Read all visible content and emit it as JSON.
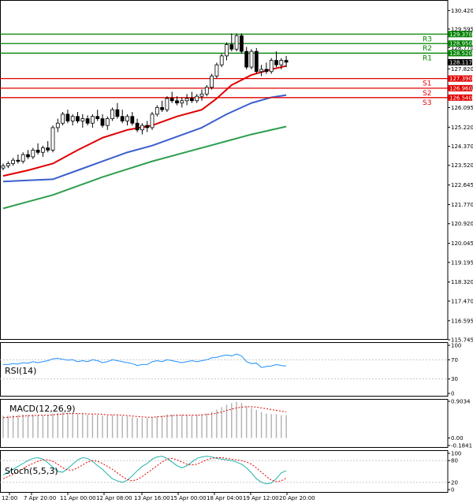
{
  "chart_data": {
    "type": "candlestick",
    "price_axis": {
      "ticks": [
        "130.420",
        "129.595",
        "128.770",
        "127.820",
        "126.995",
        "126.095",
        "125.220",
        "124.370",
        "123.520",
        "122.645",
        "121.770",
        "120.920",
        "120.045",
        "119.195",
        "118.320",
        "117.470",
        "116.595",
        "115.745"
      ],
      "range": [
        115.745,
        130.82
      ]
    },
    "time_axis": {
      "ticks": [
        "12:00",
        "7 Apr 20:00",
        "11 Apr 00:00",
        "12 Apr 08:00",
        "13 Apr 16:00",
        "15 Apr 00:00",
        "18 Apr 04:00",
        "19 Apr 12:00",
        "20 Apr 20:00"
      ]
    },
    "levels": [
      {
        "name": "R3",
        "value": 129.37,
        "label": "129.370",
        "color": "#008000"
      },
      {
        "name": "R2",
        "value": 128.95,
        "label": "128.950",
        "color": "#008000"
      },
      {
        "name": "R1",
        "value": 128.52,
        "label": "128.520",
        "color": "#008000"
      },
      {
        "name": "S1",
        "value": 127.39,
        "label": "127.390",
        "color": "#e00000"
      },
      {
        "name": "S2",
        "value": 126.96,
        "label": "126.960",
        "color": "#e00000"
      },
      {
        "name": "S3",
        "value": 126.54,
        "label": "126.540",
        "color": "#e00000"
      }
    ],
    "current_price": {
      "value": 128.117,
      "label": "128.117"
    },
    "candles": [
      [
        123.4,
        123.6,
        123.3,
        123.5
      ],
      [
        123.5,
        123.7,
        123.4,
        123.6
      ],
      [
        123.6,
        123.85,
        123.5,
        123.75
      ],
      [
        123.75,
        124.0,
        123.6,
        123.7
      ],
      [
        123.7,
        124.1,
        123.6,
        124.0
      ],
      [
        124.0,
        124.2,
        123.8,
        123.9
      ],
      [
        123.9,
        124.3,
        123.8,
        124.2
      ],
      [
        124.2,
        124.5,
        124.0,
        124.1
      ],
      [
        124.1,
        124.4,
        123.9,
        124.3
      ],
      [
        124.3,
        124.6,
        124.1,
        124.2
      ],
      [
        124.2,
        125.3,
        124.1,
        125.2
      ],
      [
        125.2,
        125.6,
        125.0,
        125.4
      ],
      [
        125.4,
        125.9,
        125.3,
        125.8
      ],
      [
        125.8,
        126.0,
        125.4,
        125.5
      ],
      [
        125.5,
        125.8,
        125.3,
        125.7
      ],
      [
        125.7,
        125.9,
        125.4,
        125.5
      ],
      [
        125.5,
        125.8,
        125.2,
        125.6
      ],
      [
        125.6,
        125.75,
        125.3,
        125.4
      ],
      [
        125.4,
        125.8,
        125.2,
        125.7
      ],
      [
        125.7,
        126.0,
        125.5,
        125.6
      ],
      [
        125.6,
        125.8,
        125.2,
        125.3
      ],
      [
        125.3,
        125.7,
        125.1,
        125.6
      ],
      [
        125.6,
        126.1,
        125.5,
        126.0
      ],
      [
        126.0,
        126.3,
        125.6,
        125.7
      ],
      [
        125.7,
        126.0,
        125.4,
        125.5
      ],
      [
        125.5,
        125.8,
        125.3,
        125.7
      ],
      [
        125.7,
        125.9,
        125.3,
        125.4
      ],
      [
        125.4,
        125.6,
        125.0,
        125.1
      ],
      [
        125.1,
        125.4,
        124.9,
        125.3
      ],
      [
        125.3,
        125.5,
        125.0,
        125.2
      ],
      [
        125.2,
        125.9,
        125.1,
        125.8
      ],
      [
        125.8,
        126.2,
        125.7,
        126.1
      ],
      [
        126.1,
        126.4,
        125.9,
        126.0
      ],
      [
        126.0,
        126.6,
        125.9,
        126.5
      ],
      [
        126.5,
        126.8,
        126.3,
        126.4
      ],
      [
        126.4,
        126.6,
        126.2,
        126.3
      ],
      [
        126.3,
        126.55,
        126.1,
        126.4
      ],
      [
        126.4,
        126.7,
        126.2,
        126.5
      ],
      [
        126.5,
        126.8,
        126.3,
        126.4
      ],
      [
        126.4,
        126.7,
        126.3,
        126.6
      ],
      [
        126.6,
        126.9,
        126.4,
        126.7
      ],
      [
        126.7,
        127.1,
        126.6,
        127.0
      ],
      [
        127.0,
        127.6,
        126.9,
        127.5
      ],
      [
        127.5,
        128.1,
        127.4,
        128.0
      ],
      [
        128.0,
        128.5,
        127.9,
        128.4
      ],
      [
        128.4,
        129.0,
        128.2,
        128.9
      ],
      [
        128.9,
        129.4,
        128.6,
        128.7
      ],
      [
        128.7,
        129.4,
        128.6,
        129.3
      ],
      [
        129.3,
        129.4,
        128.5,
        128.6
      ],
      [
        128.6,
        128.8,
        127.8,
        127.9
      ],
      [
        127.9,
        128.7,
        127.8,
        128.6
      ],
      [
        128.6,
        128.75,
        127.6,
        127.7
      ],
      [
        127.7,
        128.0,
        127.5,
        127.8
      ],
      [
        127.8,
        128.1,
        127.6,
        127.7
      ],
      [
        127.7,
        128.3,
        127.6,
        128.2
      ],
      [
        128.2,
        128.6,
        127.9,
        128.0
      ],
      [
        128.0,
        128.3,
        127.8,
        128.2
      ],
      [
        128.2,
        128.4,
        127.9,
        128.117
      ]
    ],
    "moving_averages": [
      {
        "color": "#e00000",
        "values": [
          [
            0,
            123.05
          ],
          [
            5,
            123.3
          ],
          [
            10,
            123.6
          ],
          [
            15,
            124.2
          ],
          [
            20,
            124.75
          ],
          [
            25,
            125.1
          ],
          [
            30,
            125.3
          ],
          [
            35,
            125.7
          ],
          [
            40,
            126.0
          ],
          [
            43,
            126.5
          ],
          [
            46,
            127.1
          ],
          [
            50,
            127.55
          ],
          [
            54,
            127.8
          ],
          [
            57,
            127.95
          ]
        ]
      },
      {
        "color": "#3a5fcd",
        "values": [
          [
            0,
            122.8
          ],
          [
            5,
            122.85
          ],
          [
            10,
            122.9
          ],
          [
            15,
            123.3
          ],
          [
            20,
            123.7
          ],
          [
            25,
            124.1
          ],
          [
            30,
            124.4
          ],
          [
            35,
            124.8
          ],
          [
            40,
            125.2
          ],
          [
            45,
            125.8
          ],
          [
            50,
            126.3
          ],
          [
            54,
            126.55
          ],
          [
            57,
            126.65
          ]
        ]
      },
      {
        "color": "#2e9e4f",
        "values": [
          [
            0,
            121.6
          ],
          [
            5,
            121.9
          ],
          [
            10,
            122.2
          ],
          [
            15,
            122.6
          ],
          [
            20,
            123.0
          ],
          [
            25,
            123.35
          ],
          [
            30,
            123.7
          ],
          [
            35,
            124.0
          ],
          [
            40,
            124.3
          ],
          [
            45,
            124.6
          ],
          [
            50,
            124.9
          ],
          [
            54,
            125.1
          ],
          [
            57,
            125.25
          ]
        ]
      }
    ],
    "rsi": {
      "label": "RSI(14)",
      "ticks": [
        "100",
        "70",
        "30",
        "0"
      ],
      "values": [
        60,
        60,
        62,
        61,
        64,
        63,
        66,
        64,
        66,
        68,
        72,
        73,
        71,
        69,
        70,
        66,
        68,
        66,
        70,
        68,
        64,
        66,
        70,
        68,
        66,
        64,
        62,
        58,
        60,
        60,
        66,
        68,
        66,
        70,
        68,
        66,
        64,
        66,
        68,
        66,
        68,
        70,
        74,
        75,
        78,
        80,
        78,
        82,
        78,
        66,
        62,
        63,
        54,
        56,
        57,
        60,
        58,
        57
      ]
    },
    "macd": {
      "label": "MACD(12,26,9)",
      "ticks": [
        "0.9034",
        "0.00",
        "-0.1841"
      ],
      "range": [
        -0.1841,
        0.9034
      ],
      "histogram": [
        0.55,
        0.55,
        0.56,
        0.56,
        0.58,
        0.57,
        0.58,
        0.56,
        0.56,
        0.56,
        0.6,
        0.62,
        0.64,
        0.63,
        0.62,
        0.6,
        0.59,
        0.57,
        0.58,
        0.57,
        0.55,
        0.55,
        0.57,
        0.56,
        0.54,
        0.53,
        0.51,
        0.49,
        0.49,
        0.49,
        0.51,
        0.53,
        0.55,
        0.58,
        0.58,
        0.58,
        0.57,
        0.57,
        0.56,
        0.57,
        0.58,
        0.6,
        0.64,
        0.7,
        0.76,
        0.82,
        0.86,
        0.89,
        0.86,
        0.78,
        0.74,
        0.69,
        0.64,
        0.6,
        0.59,
        0.58,
        0.56,
        0.56
      ],
      "signal": [
        0.5,
        0.51,
        0.52,
        0.53,
        0.54,
        0.55,
        0.55,
        0.56,
        0.56,
        0.56,
        0.57,
        0.58,
        0.59,
        0.6,
        0.6,
        0.6,
        0.6,
        0.59,
        0.59,
        0.59,
        0.58,
        0.57,
        0.57,
        0.57,
        0.56,
        0.55,
        0.54,
        0.53,
        0.52,
        0.51,
        0.51,
        0.52,
        0.53,
        0.54,
        0.55,
        0.56,
        0.56,
        0.56,
        0.56,
        0.56,
        0.57,
        0.58,
        0.59,
        0.61,
        0.64,
        0.68,
        0.71,
        0.74,
        0.76,
        0.77,
        0.77,
        0.76,
        0.74,
        0.72,
        0.7,
        0.68,
        0.66,
        0.64
      ]
    },
    "stoch": {
      "label": "Stoch(5,5,3)",
      "ticks": [
        "100",
        "80",
        "20",
        "0"
      ],
      "main": [
        40,
        48,
        56,
        64,
        72,
        80,
        86,
        88,
        84,
        74,
        62,
        50,
        48,
        58,
        70,
        82,
        88,
        86,
        78,
        66,
        56,
        42,
        30,
        24,
        20,
        26,
        38,
        52,
        64,
        72,
        84,
        90,
        92,
        86,
        76,
        66,
        60,
        66,
        76,
        86,
        90,
        92,
        90,
        86,
        84,
        82,
        80,
        76,
        70,
        60,
        46,
        30,
        20,
        16,
        18,
        30,
        46,
        52
      ],
      "signal": [
        30,
        36,
        42,
        50,
        58,
        66,
        72,
        78,
        82,
        82,
        78,
        70,
        60,
        54,
        54,
        60,
        68,
        76,
        80,
        78,
        72,
        64,
        56,
        46,
        36,
        28,
        24,
        28,
        36,
        46,
        56,
        66,
        76,
        84,
        86,
        82,
        76,
        70,
        68,
        70,
        76,
        82,
        86,
        88,
        88,
        86,
        84,
        82,
        80,
        76,
        70,
        60,
        48,
        36,
        26,
        22,
        24,
        32
      ]
    }
  }
}
